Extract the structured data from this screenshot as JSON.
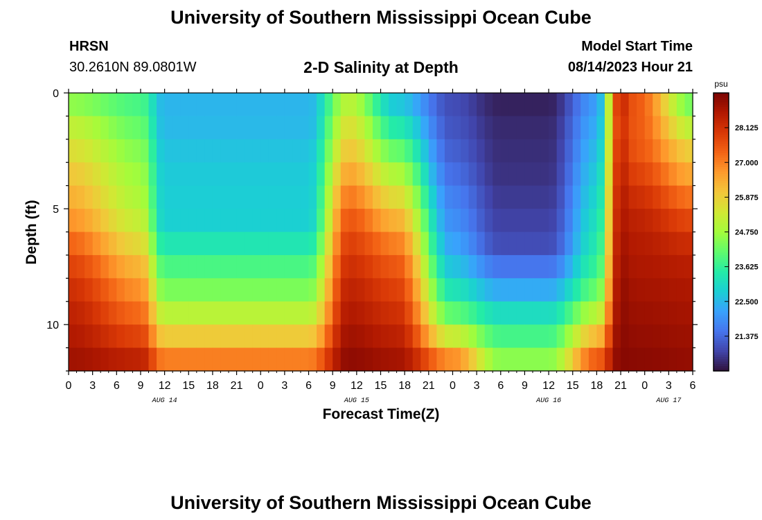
{
  "header": {
    "title": "University of Southern Mississippi Ocean Cube",
    "station_code": "HRSN",
    "coordinates": "30.2610N  89.0801W",
    "plot_title": "2-D Salinity at Depth",
    "start_label": "Model Start Time",
    "start_value": "08/14/2023 Hour 21"
  },
  "footer": {
    "title": "University of Southern Mississippi Ocean Cube"
  },
  "chart_data": {
    "type": "heatmap",
    "title": "2-D Salinity at Depth",
    "xlabel": "Forecast Time(Z)",
    "ylabel": "Depth (ft)",
    "x_hours": [
      0,
      78
    ],
    "x_start_hour_of_day": 0,
    "x_tick_labels": [
      "0",
      "3",
      "6",
      "9",
      "12",
      "15",
      "18",
      "21",
      "0",
      "3",
      "6",
      "9",
      "12",
      "15",
      "18",
      "21",
      "0",
      "3",
      "6",
      "9",
      "12",
      "15",
      "18",
      "21",
      "0",
      "3",
      "6"
    ],
    "day_labels": [
      {
        "text": "AUG 14",
        "hour": 12
      },
      {
        "text": "AUG 15",
        "hour": 36
      },
      {
        "text": "AUG 16",
        "hour": 60
      },
      {
        "text": "AUG 17",
        "hour": 75
      }
    ],
    "ylim": [
      0,
      12
    ],
    "y_ticks": [
      0,
      5,
      10
    ],
    "depth_levels": 12,
    "colorbar": {
      "units": "psu",
      "range": [
        20.25,
        29.25
      ],
      "tick_labels": [
        "28.125",
        "27.000",
        "25.875",
        "24.750",
        "23.625",
        "22.500",
        "21.375"
      ],
      "tick_values": [
        28.125,
        27.0,
        25.875,
        24.75,
        23.625,
        22.5,
        21.375
      ],
      "colors": [
        "#30123b",
        "#4145ab",
        "#4675ed",
        "#39a2fc",
        "#1bcfd4",
        "#24eca6",
        "#61fc6c",
        "#a4fc3b",
        "#d1e834",
        "#f3c63a",
        "#fe9b2d",
        "#f36315",
        "#d93806",
        "#b11901",
        "#7a0402"
      ]
    },
    "salinity_profile": {
      "description": "salinity (psu) at each depth level (0-12 ft) for hour-based keyframes",
      "keyframe_hours": [
        0,
        9,
        12,
        30,
        35,
        41,
        48,
        54,
        60,
        66,
        69,
        71,
        78
      ],
      "rows": [
        [
          24.2,
          23.7,
          22.5,
          22.5,
          24.8,
          22.5,
          21.0,
          20.4,
          20.4,
          22.0,
          28.5,
          27.4,
          24.0
        ],
        [
          24.9,
          24.0,
          22.4,
          22.4,
          25.3,
          23.0,
          21.0,
          20.5,
          20.5,
          22.2,
          28.0,
          27.5,
          24.6
        ],
        [
          25.4,
          24.3,
          22.6,
          22.6,
          25.8,
          23.8,
          21.2,
          20.6,
          20.6,
          22.4,
          28.2,
          27.4,
          25.6
        ],
        [
          25.8,
          24.6,
          22.7,
          22.7,
          26.2,
          24.5,
          21.3,
          20.6,
          20.6,
          22.6,
          28.3,
          27.6,
          26.2
        ],
        [
          26.2,
          24.8,
          22.8,
          22.8,
          26.8,
          25.3,
          21.6,
          20.7,
          20.7,
          22.8,
          28.5,
          28.0,
          26.8
        ],
        [
          26.5,
          25.0,
          22.8,
          22.8,
          27.3,
          26.0,
          21.8,
          20.8,
          20.8,
          23.0,
          28.6,
          28.3,
          27.5
        ],
        [
          27.0,
          25.4,
          22.9,
          22.9,
          27.7,
          26.7,
          22.0,
          20.9,
          20.9,
          23.2,
          28.7,
          28.5,
          28.0
        ],
        [
          27.6,
          26.0,
          23.7,
          23.7,
          28.0,
          27.3,
          22.4,
          21.1,
          21.1,
          23.4,
          28.8,
          28.6,
          28.4
        ],
        [
          28.0,
          26.6,
          24.0,
          24.0,
          28.3,
          27.7,
          22.9,
          22.0,
          22.0,
          23.8,
          28.9,
          28.7,
          28.6
        ],
        [
          28.3,
          27.0,
          24.7,
          24.7,
          28.5,
          28.0,
          23.6,
          22.6,
          22.6,
          24.4,
          29.0,
          28.8,
          28.7
        ],
        [
          28.5,
          27.5,
          25.4,
          25.4,
          28.7,
          28.3,
          24.5,
          23.6,
          23.6,
          25.5,
          29.0,
          28.9,
          28.8
        ],
        [
          28.7,
          28.1,
          26.5,
          26.5,
          28.9,
          28.6,
          26.0,
          24.0,
          24.0,
          26.8,
          29.1,
          29.0,
          28.9
        ],
        [
          28.9,
          28.7,
          27.5,
          27.5,
          29.1,
          28.9,
          27.6,
          25.0,
          25.0,
          27.9,
          29.1,
          29.1,
          29.0
        ]
      ]
    }
  }
}
